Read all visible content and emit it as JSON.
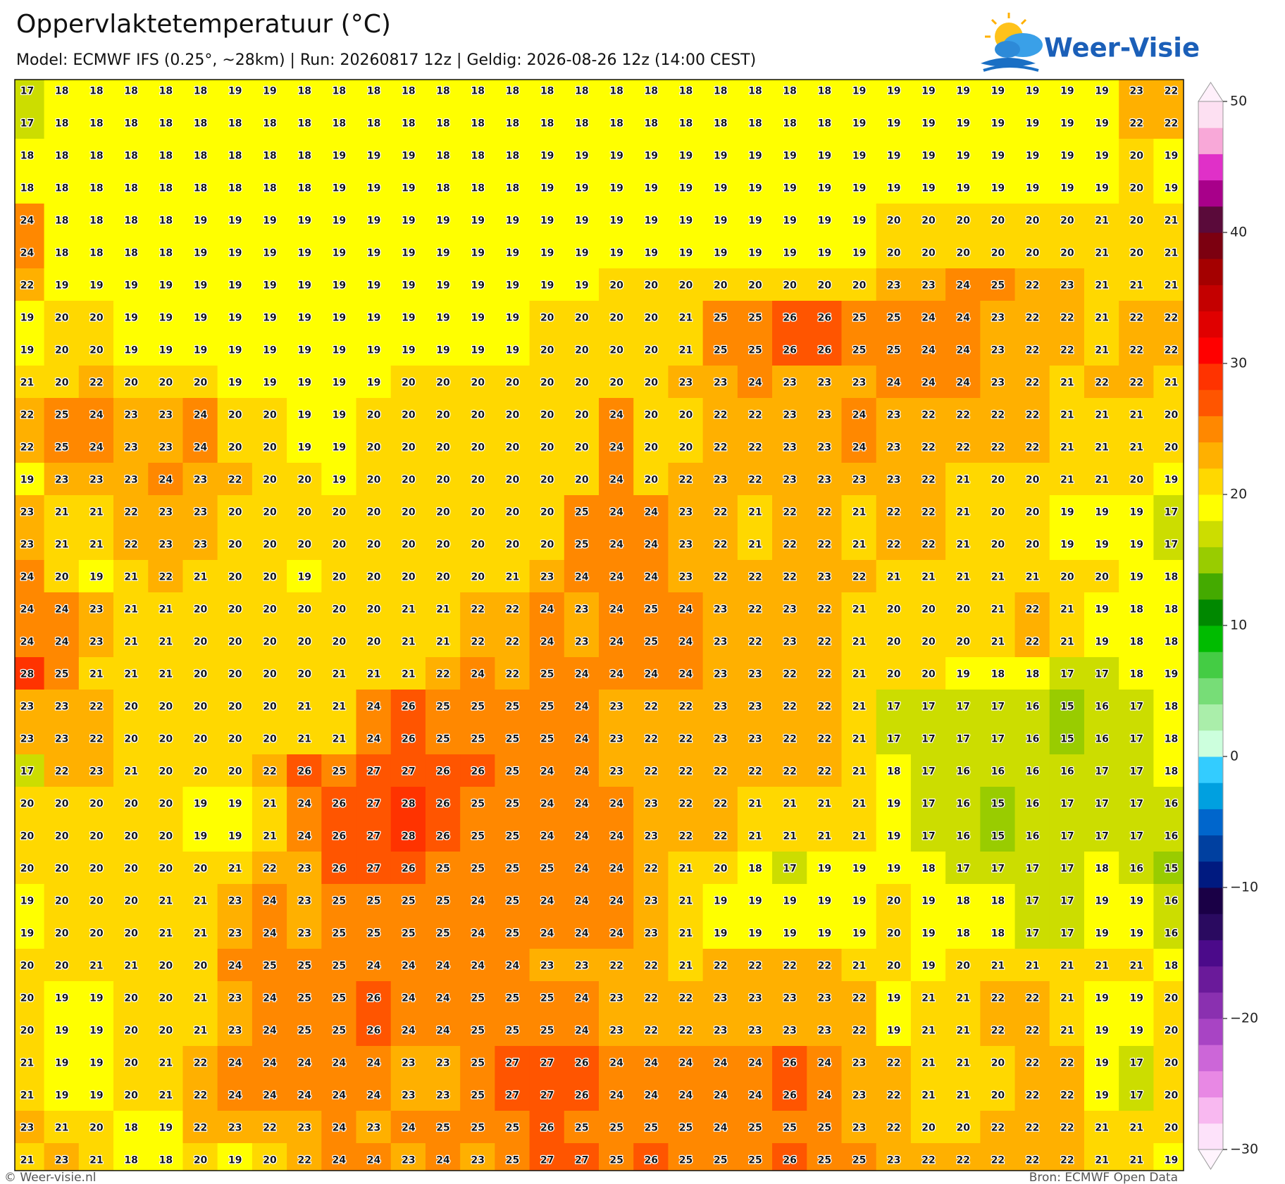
{
  "header": {
    "title": "Oppervlaktetemperatuur (°C)",
    "subtitle": "Model: ECMWF IFS (0.25°, ~28km)  |  Run: 20260817 12z  |  Geldig: 2026-08-26 12z (14:00 CEST)",
    "logo": "Weer-Visie"
  },
  "grid": {
    "rows": [
      [
        17,
        18,
        18,
        18,
        18,
        18,
        19,
        19,
        18,
        18,
        18,
        18,
        18,
        18,
        18,
        18,
        18,
        18,
        18,
        18,
        18,
        18,
        18,
        18,
        19,
        19,
        19,
        19,
        19,
        19,
        19,
        19,
        23,
        22
      ],
      [
        17,
        18,
        18,
        18,
        18,
        18,
        18,
        18,
        18,
        18,
        18,
        18,
        18,
        18,
        18,
        18,
        18,
        18,
        18,
        18,
        18,
        18,
        18,
        18,
        19,
        19,
        19,
        19,
        19,
        19,
        19,
        19,
        22,
        22
      ],
      [
        18,
        18,
        18,
        18,
        18,
        18,
        18,
        18,
        18,
        19,
        19,
        19,
        18,
        18,
        18,
        19,
        19,
        19,
        19,
        19,
        19,
        19,
        19,
        19,
        19,
        19,
        19,
        19,
        19,
        19,
        19,
        19,
        20,
        19
      ],
      [
        18,
        18,
        18,
        18,
        18,
        18,
        18,
        18,
        18,
        19,
        19,
        19,
        18,
        18,
        18,
        19,
        19,
        19,
        19,
        19,
        19,
        19,
        19,
        19,
        19,
        19,
        19,
        19,
        19,
        19,
        19,
        19,
        20,
        19
      ],
      [
        24,
        18,
        18,
        18,
        18,
        19,
        19,
        19,
        19,
        19,
        19,
        19,
        19,
        19,
        19,
        19,
        19,
        19,
        19,
        19,
        19,
        19,
        19,
        19,
        19,
        20,
        20,
        20,
        20,
        20,
        20,
        21,
        20,
        21
      ],
      [
        24,
        18,
        18,
        18,
        18,
        19,
        19,
        19,
        19,
        19,
        19,
        19,
        19,
        19,
        19,
        19,
        19,
        19,
        19,
        19,
        19,
        19,
        19,
        19,
        19,
        20,
        20,
        20,
        20,
        20,
        20,
        21,
        20,
        21
      ],
      [
        22,
        19,
        19,
        19,
        19,
        19,
        19,
        19,
        19,
        19,
        19,
        19,
        19,
        19,
        19,
        19,
        19,
        20,
        20,
        20,
        20,
        20,
        20,
        20,
        20,
        23,
        23,
        24,
        25,
        22,
        23,
        21,
        21,
        21
      ],
      [
        19,
        20,
        20,
        19,
        19,
        19,
        19,
        19,
        19,
        19,
        19,
        19,
        19,
        19,
        19,
        20,
        20,
        20,
        20,
        21,
        25,
        25,
        26,
        26,
        25,
        25,
        24,
        24,
        23,
        22,
        22,
        21,
        22,
        22
      ],
      [
        19,
        20,
        20,
        19,
        19,
        19,
        19,
        19,
        19,
        19,
        19,
        19,
        19,
        19,
        19,
        20,
        20,
        20,
        20,
        21,
        25,
        25,
        26,
        26,
        25,
        25,
        24,
        24,
        23,
        22,
        22,
        21,
        22,
        22
      ],
      [
        21,
        20,
        22,
        20,
        20,
        20,
        19,
        19,
        19,
        19,
        19,
        20,
        20,
        20,
        20,
        20,
        20,
        20,
        20,
        23,
        23,
        24,
        23,
        23,
        23,
        24,
        24,
        24,
        23,
        22,
        21,
        22,
        22,
        21
      ],
      [
        22,
        25,
        24,
        23,
        23,
        24,
        20,
        20,
        19,
        19,
        20,
        20,
        20,
        20,
        20,
        20,
        20,
        24,
        20,
        20,
        22,
        22,
        23,
        23,
        24,
        23,
        22,
        22,
        22,
        22,
        21,
        21,
        21,
        20
      ],
      [
        22,
        25,
        24,
        23,
        23,
        24,
        20,
        20,
        19,
        19,
        20,
        20,
        20,
        20,
        20,
        20,
        20,
        24,
        20,
        20,
        22,
        22,
        23,
        23,
        24,
        23,
        22,
        22,
        22,
        22,
        21,
        21,
        21,
        20
      ],
      [
        19,
        23,
        23,
        23,
        24,
        23,
        22,
        20,
        20,
        19,
        20,
        20,
        20,
        20,
        20,
        20,
        20,
        24,
        20,
        22,
        23,
        22,
        23,
        23,
        23,
        23,
        22,
        21,
        20,
        20,
        21,
        21,
        20,
        19
      ],
      [
        23,
        21,
        21,
        22,
        23,
        23,
        20,
        20,
        20,
        20,
        20,
        20,
        20,
        20,
        20,
        20,
        25,
        24,
        24,
        23,
        22,
        21,
        22,
        22,
        21,
        22,
        22,
        21,
        20,
        20,
        19,
        19,
        19,
        17
      ],
      [
        23,
        21,
        21,
        22,
        23,
        23,
        20,
        20,
        20,
        20,
        20,
        20,
        20,
        20,
        20,
        20,
        25,
        24,
        24,
        23,
        22,
        21,
        22,
        22,
        21,
        22,
        22,
        21,
        20,
        20,
        19,
        19,
        19,
        17
      ],
      [
        24,
        20,
        19,
        21,
        22,
        21,
        20,
        20,
        19,
        20,
        20,
        20,
        20,
        20,
        21,
        23,
        24,
        24,
        24,
        23,
        22,
        22,
        22,
        23,
        22,
        21,
        21,
        21,
        21,
        21,
        20,
        20,
        19,
        18
      ],
      [
        24,
        24,
        23,
        21,
        21,
        20,
        20,
        20,
        20,
        20,
        20,
        21,
        21,
        22,
        22,
        24,
        23,
        24,
        25,
        24,
        23,
        22,
        23,
        22,
        21,
        20,
        20,
        20,
        21,
        22,
        21,
        19,
        18,
        18
      ],
      [
        24,
        24,
        23,
        21,
        21,
        20,
        20,
        20,
        20,
        20,
        20,
        21,
        21,
        22,
        22,
        24,
        23,
        24,
        25,
        24,
        23,
        22,
        23,
        22,
        21,
        20,
        20,
        20,
        21,
        22,
        21,
        19,
        18,
        18
      ],
      [
        28,
        25,
        21,
        21,
        21,
        20,
        20,
        20,
        20,
        21,
        21,
        21,
        22,
        24,
        22,
        25,
        24,
        24,
        24,
        24,
        23,
        23,
        22,
        22,
        21,
        20,
        20,
        19,
        18,
        18,
        17,
        17,
        18,
        19
      ],
      [
        23,
        23,
        22,
        20,
        20,
        20,
        20,
        20,
        21,
        21,
        24,
        26,
        25,
        25,
        25,
        25,
        24,
        23,
        22,
        22,
        23,
        23,
        22,
        22,
        21,
        17,
        17,
        17,
        17,
        16,
        15,
        16,
        17,
        18
      ],
      [
        23,
        23,
        22,
        20,
        20,
        20,
        20,
        20,
        21,
        21,
        24,
        26,
        25,
        25,
        25,
        25,
        24,
        23,
        22,
        22,
        23,
        23,
        22,
        22,
        21,
        17,
        17,
        17,
        17,
        16,
        15,
        16,
        17,
        18
      ],
      [
        17,
        22,
        23,
        21,
        20,
        20,
        20,
        22,
        26,
        25,
        27,
        27,
        26,
        26,
        25,
        24,
        24,
        23,
        22,
        22,
        22,
        22,
        22,
        22,
        21,
        18,
        17,
        16,
        16,
        16,
        16,
        17,
        17,
        18
      ],
      [
        20,
        20,
        20,
        20,
        20,
        19,
        19,
        21,
        24,
        26,
        27,
        28,
        26,
        25,
        25,
        24,
        24,
        24,
        23,
        22,
        22,
        21,
        21,
        21,
        21,
        19,
        17,
        16,
        15,
        16,
        17,
        17,
        17,
        16
      ],
      [
        20,
        20,
        20,
        20,
        20,
        19,
        19,
        21,
        24,
        26,
        27,
        28,
        26,
        25,
        25,
        24,
        24,
        24,
        23,
        22,
        22,
        21,
        21,
        21,
        21,
        19,
        17,
        16,
        15,
        16,
        17,
        17,
        17,
        16
      ],
      [
        20,
        20,
        20,
        20,
        20,
        20,
        21,
        22,
        23,
        26,
        27,
        26,
        25,
        25,
        25,
        25,
        24,
        24,
        22,
        21,
        20,
        18,
        17,
        19,
        19,
        19,
        18,
        17,
        17,
        17,
        17,
        18,
        16,
        15
      ],
      [
        19,
        20,
        20,
        20,
        21,
        21,
        23,
        24,
        23,
        25,
        25,
        25,
        25,
        24,
        25,
        24,
        24,
        24,
        23,
        21,
        19,
        19,
        19,
        19,
        19,
        20,
        19,
        18,
        18,
        17,
        17,
        19,
        19,
        16
      ],
      [
        19,
        20,
        20,
        20,
        21,
        21,
        23,
        24,
        23,
        25,
        25,
        25,
        25,
        24,
        25,
        24,
        24,
        24,
        23,
        21,
        19,
        19,
        19,
        19,
        19,
        20,
        19,
        18,
        18,
        17,
        17,
        19,
        19,
        16
      ],
      [
        20,
        20,
        21,
        21,
        20,
        20,
        24,
        25,
        25,
        25,
        24,
        24,
        24,
        24,
        24,
        23,
        23,
        22,
        22,
        21,
        22,
        22,
        22,
        22,
        21,
        20,
        19,
        20,
        21,
        21,
        21,
        21,
        21,
        18
      ],
      [
        20,
        19,
        19,
        20,
        20,
        21,
        23,
        24,
        25,
        25,
        26,
        24,
        24,
        25,
        25,
        25,
        24,
        23,
        22,
        22,
        23,
        23,
        23,
        23,
        22,
        19,
        21,
        21,
        22,
        22,
        21,
        19,
        19,
        20
      ],
      [
        20,
        19,
        19,
        20,
        20,
        21,
        23,
        24,
        25,
        25,
        26,
        24,
        24,
        25,
        25,
        25,
        24,
        23,
        22,
        22,
        23,
        23,
        23,
        23,
        22,
        19,
        21,
        21,
        22,
        22,
        21,
        19,
        19,
        20
      ],
      [
        21,
        19,
        19,
        20,
        21,
        22,
        24,
        24,
        24,
        24,
        24,
        23,
        23,
        25,
        27,
        27,
        26,
        24,
        24,
        24,
        24,
        24,
        26,
        24,
        23,
        22,
        21,
        21,
        20,
        22,
        22,
        19,
        17,
        20
      ],
      [
        21,
        19,
        19,
        20,
        21,
        22,
        24,
        24,
        24,
        24,
        24,
        23,
        23,
        25,
        27,
        27,
        26,
        24,
        24,
        24,
        24,
        24,
        26,
        24,
        23,
        22,
        21,
        21,
        20,
        22,
        22,
        19,
        17,
        20
      ],
      [
        23,
        21,
        20,
        18,
        19,
        22,
        23,
        22,
        23,
        24,
        23,
        24,
        25,
        25,
        25,
        26,
        25,
        25,
        25,
        25,
        24,
        25,
        25,
        25,
        23,
        22,
        20,
        20,
        22,
        22,
        22,
        21,
        21,
        20
      ],
      [
        21,
        23,
        21,
        18,
        18,
        20,
        19,
        20,
        22,
        24,
        24,
        23,
        24,
        23,
        25,
        27,
        27,
        25,
        26,
        25,
        25,
        25,
        26,
        25,
        25,
        23,
        22,
        22,
        22,
        22,
        22,
        21,
        21,
        19
      ]
    ]
  },
  "colorbar": {
    "ticks": [
      50,
      40,
      30,
      20,
      10,
      0,
      {
        "value": -10,
        "label": "−10"
      },
      {
        "value": -20,
        "label": "−20"
      },
      {
        "value": -30,
        "label": "−30"
      }
    ],
    "colors": [
      "#fde2fa",
      "#f8b8f0",
      "#e888e4",
      "#cc66d8",
      "#a844c4",
      "#8a30b0",
      "#6a1a9a",
      "#4b0a8a",
      "#2a0a60",
      "#1a0046",
      "#001a80",
      "#0040a0",
      "#0066cc",
      "#00a0e0",
      "#33ccff",
      "#ccffdd",
      "#aaeeaa",
      "#77dd77",
      "#44cc44",
      "#00bb00",
      "#008800",
      "#44aa00",
      "#99cc00",
      "#ccdd00",
      "#ffff00",
      "#ffd800",
      "#ffb000",
      "#ff8800",
      "#ff5500",
      "#ff3300",
      "#ff0000",
      "#e00000",
      "#c40000",
      "#a40000",
      "#7c0010",
      "#5a0a3a",
      "#a8008a",
      "#e030c8",
      "#f8a8d8",
      "#fde0f2"
    ],
    "extend_colors": [
      "#fff4fd",
      "#fff0fb"
    ]
  },
  "footer": {
    "credit": "© Weer-visie.nl",
    "source": "Bron: ECMWF Open Data"
  }
}
